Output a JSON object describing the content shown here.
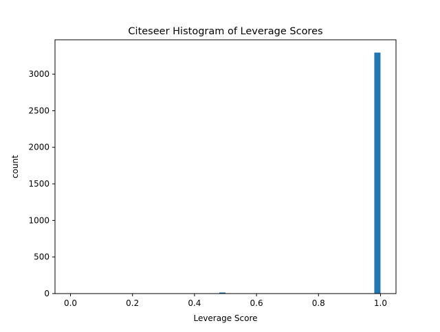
{
  "chart_data": {
    "type": "bar",
    "title": "Citeseer Histogram of Leverage Scores",
    "xlabel": "Leverage Score",
    "ylabel": "count",
    "xlim": [
      -0.05,
      1.05
    ],
    "ylim": [
      0,
      3470
    ],
    "xticks": [
      0.0,
      0.2,
      0.4,
      0.6,
      0.8,
      1.0
    ],
    "xtick_labels": [
      "0.0",
      "0.2",
      "0.4",
      "0.6",
      "0.8",
      "1.0"
    ],
    "yticks": [
      0,
      500,
      1000,
      1500,
      2000,
      2500,
      3000
    ],
    "ytick_labels": [
      "0",
      "500",
      "1000",
      "1500",
      "2000",
      "2500",
      "3000"
    ],
    "grid": false,
    "legend": "none",
    "color": "#1f77b4",
    "bins": [
      {
        "x0": 0.0,
        "x1": 0.02,
        "value": 5
      },
      {
        "x0": 0.48,
        "x1": 0.5,
        "value": 15
      },
      {
        "x0": 0.98,
        "x1": 1.0,
        "value": 3295
      }
    ]
  }
}
